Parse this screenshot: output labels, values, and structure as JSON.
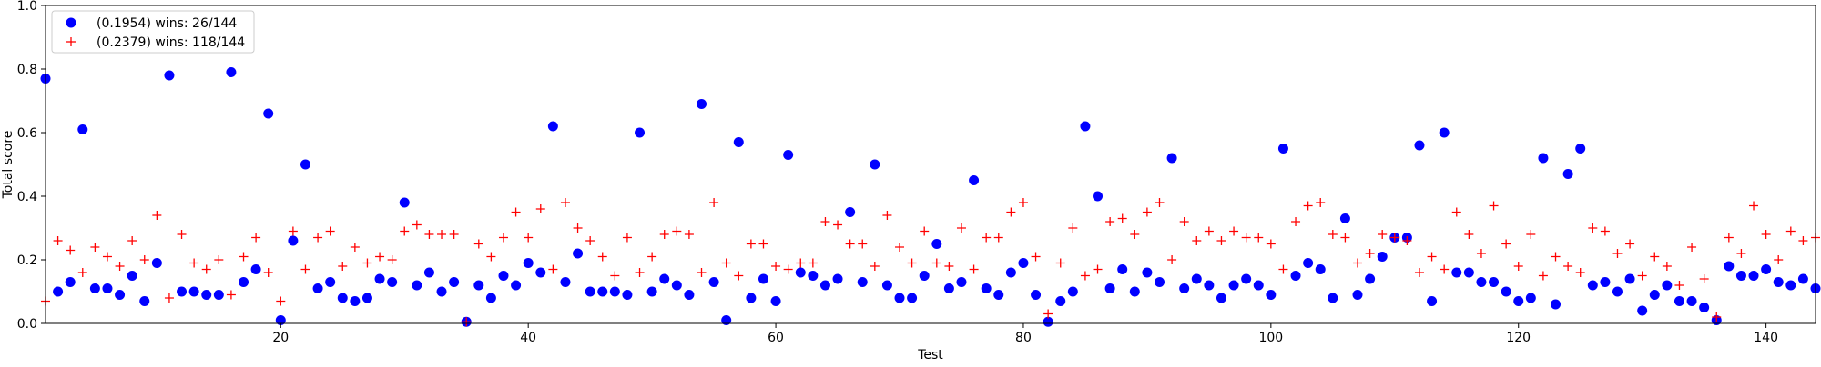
{
  "chart_data": {
    "type": "scatter",
    "xlabel": "Test",
    "ylabel": "Total score",
    "xlim": [
      1,
      144
    ],
    "ylim": [
      0.0,
      1.0
    ],
    "xticks": [
      20,
      40,
      60,
      80,
      100,
      120,
      140
    ],
    "yticks": [
      0.0,
      0.2,
      0.4,
      0.6,
      0.8,
      1.0
    ],
    "xtick_labels": [
      "20",
      "40",
      "60",
      "80",
      "100",
      "120",
      "140"
    ],
    "ytick_labels": [
      "0.0",
      "0.2",
      "0.4",
      "0.6",
      "0.8",
      "1.0"
    ],
    "grid": false,
    "legend_position": "top-left",
    "series": [
      {
        "name": "(0.1954) wins: 26/144",
        "marker": "circle",
        "color": "#0000ff",
        "x": [
          1,
          2,
          3,
          4,
          5,
          6,
          7,
          8,
          9,
          10,
          11,
          12,
          13,
          14,
          15,
          16,
          17,
          18,
          19,
          20,
          21,
          22,
          23,
          24,
          25,
          26,
          27,
          28,
          29,
          30,
          31,
          32,
          33,
          34,
          35,
          36,
          37,
          38,
          39,
          40,
          41,
          42,
          43,
          44,
          45,
          46,
          47,
          48,
          49,
          50,
          51,
          52,
          53,
          54,
          55,
          56,
          57,
          58,
          59,
          60,
          61,
          62,
          63,
          64,
          65,
          66,
          67,
          68,
          69,
          70,
          71,
          72,
          73,
          74,
          75,
          76,
          77,
          78,
          79,
          80,
          81,
          82,
          83,
          84,
          85,
          86,
          87,
          88,
          89,
          90,
          91,
          92,
          93,
          94,
          95,
          96,
          97,
          98,
          99,
          100,
          101,
          102,
          103,
          104,
          105,
          106,
          107,
          108,
          109,
          110,
          111,
          112,
          113,
          114,
          115,
          116,
          117,
          118,
          119,
          120,
          121,
          122,
          123,
          124,
          125,
          126,
          127,
          128,
          129,
          130,
          131,
          132,
          133,
          134,
          135,
          136,
          137,
          138,
          139,
          140,
          141,
          142,
          143,
          144
        ],
        "y": [
          0.77,
          0.1,
          0.13,
          0.61,
          0.11,
          0.11,
          0.09,
          0.15,
          0.07,
          0.19,
          0.78,
          0.1,
          0.1,
          0.09,
          0.09,
          0.79,
          0.13,
          0.17,
          0.66,
          0.01,
          0.26,
          0.5,
          0.11,
          0.13,
          0.08,
          0.07,
          0.08,
          0.14,
          0.13,
          0.38,
          0.12,
          0.16,
          0.1,
          0.13,
          0.005,
          0.12,
          0.08,
          0.15,
          0.12,
          0.19,
          0.16,
          0.62,
          0.13,
          0.22,
          0.1,
          0.1,
          0.1,
          0.09,
          0.6,
          0.1,
          0.14,
          0.12,
          0.09,
          0.69,
          0.13,
          0.01,
          0.57,
          0.08,
          0.14,
          0.07,
          0.53,
          0.16,
          0.15,
          0.12,
          0.14,
          0.35,
          0.13,
          0.5,
          0.12,
          0.08,
          0.08,
          0.15,
          0.25,
          0.11,
          0.13,
          0.45,
          0.11,
          0.09,
          0.16,
          0.19,
          0.09,
          0.005,
          0.07,
          0.1,
          0.62,
          0.4,
          0.11,
          0.17,
          0.1,
          0.16,
          0.13,
          0.52,
          0.11,
          0.14,
          0.12,
          0.08,
          0.12,
          0.14,
          0.12,
          0.09,
          0.55,
          0.15,
          0.19,
          0.17,
          0.08,
          0.33,
          0.09,
          0.14,
          0.21,
          0.27,
          0.27,
          0.56,
          0.07,
          0.6,
          0.16,
          0.16,
          0.13,
          0.13,
          0.1,
          0.07,
          0.08,
          0.52,
          0.06,
          0.47,
          0.55,
          0.12,
          0.13,
          0.1,
          0.14,
          0.04,
          0.09,
          0.12,
          0.07,
          0.07,
          0.05,
          0.01,
          0.18,
          0.15,
          0.15,
          0.17,
          0.13,
          0.12,
          0.14,
          0.11
        ]
      },
      {
        "name": "(0.2379) wins: 118/144",
        "marker": "plus",
        "color": "#ff0000",
        "x": [
          1,
          2,
          3,
          4,
          5,
          6,
          7,
          8,
          9,
          10,
          11,
          12,
          13,
          14,
          15,
          16,
          17,
          18,
          19,
          20,
          21,
          22,
          23,
          24,
          25,
          26,
          27,
          28,
          29,
          30,
          31,
          32,
          33,
          34,
          35,
          36,
          37,
          38,
          39,
          40,
          41,
          42,
          43,
          44,
          45,
          46,
          47,
          48,
          49,
          50,
          51,
          52,
          53,
          54,
          55,
          56,
          57,
          58,
          59,
          60,
          61,
          62,
          63,
          64,
          65,
          66,
          67,
          68,
          69,
          70,
          71,
          72,
          73,
          74,
          75,
          76,
          77,
          78,
          79,
          80,
          81,
          82,
          83,
          84,
          85,
          86,
          87,
          88,
          89,
          90,
          91,
          92,
          93,
          94,
          95,
          96,
          97,
          98,
          99,
          100,
          101,
          102,
          103,
          104,
          105,
          106,
          107,
          108,
          109,
          110,
          111,
          112,
          113,
          114,
          115,
          116,
          117,
          118,
          119,
          120,
          121,
          122,
          123,
          124,
          125,
          126,
          127,
          128,
          129,
          130,
          131,
          132,
          133,
          134,
          135,
          136,
          137,
          138,
          139,
          140,
          141,
          142,
          143,
          144
        ],
        "y": [
          0.07,
          0.26,
          0.23,
          0.16,
          0.24,
          0.21,
          0.18,
          0.26,
          0.2,
          0.34,
          0.08,
          0.28,
          0.19,
          0.17,
          0.2,
          0.09,
          0.21,
          0.27,
          0.16,
          0.07,
          0.29,
          0.17,
          0.27,
          0.29,
          0.18,
          0.24,
          0.19,
          0.21,
          0.2,
          0.29,
          0.31,
          0.28,
          0.28,
          0.28,
          0.005,
          0.25,
          0.21,
          0.27,
          0.35,
          0.27,
          0.36,
          0.17,
          0.38,
          0.3,
          0.26,
          0.21,
          0.15,
          0.27,
          0.16,
          0.21,
          0.28,
          0.29,
          0.28,
          0.16,
          0.38,
          0.19,
          0.15,
          0.25,
          0.25,
          0.18,
          0.17,
          0.19,
          0.19,
          0.32,
          0.31,
          0.25,
          0.25,
          0.18,
          0.34,
          0.24,
          0.19,
          0.29,
          0.19,
          0.18,
          0.3,
          0.17,
          0.27,
          0.27,
          0.35,
          0.38,
          0.21,
          0.03,
          0.19,
          0.3,
          0.15,
          0.17,
          0.32,
          0.33,
          0.28,
          0.35,
          0.38,
          0.2,
          0.32,
          0.26,
          0.29,
          0.26,
          0.29,
          0.27,
          0.27,
          0.25,
          0.17,
          0.32,
          0.37,
          0.38,
          0.28,
          0.27,
          0.19,
          0.22,
          0.28,
          0.27,
          0.26,
          0.16,
          0.21,
          0.17,
          0.35,
          0.28,
          0.22,
          0.37,
          0.25,
          0.18,
          0.28,
          0.15,
          0.21,
          0.18,
          0.16,
          0.3,
          0.29,
          0.22,
          0.25,
          0.15,
          0.21,
          0.18,
          0.12,
          0.24,
          0.14,
          0.02,
          0.27,
          0.22,
          0.37,
          0.28,
          0.2,
          0.29,
          0.26,
          0.27
        ]
      }
    ]
  }
}
